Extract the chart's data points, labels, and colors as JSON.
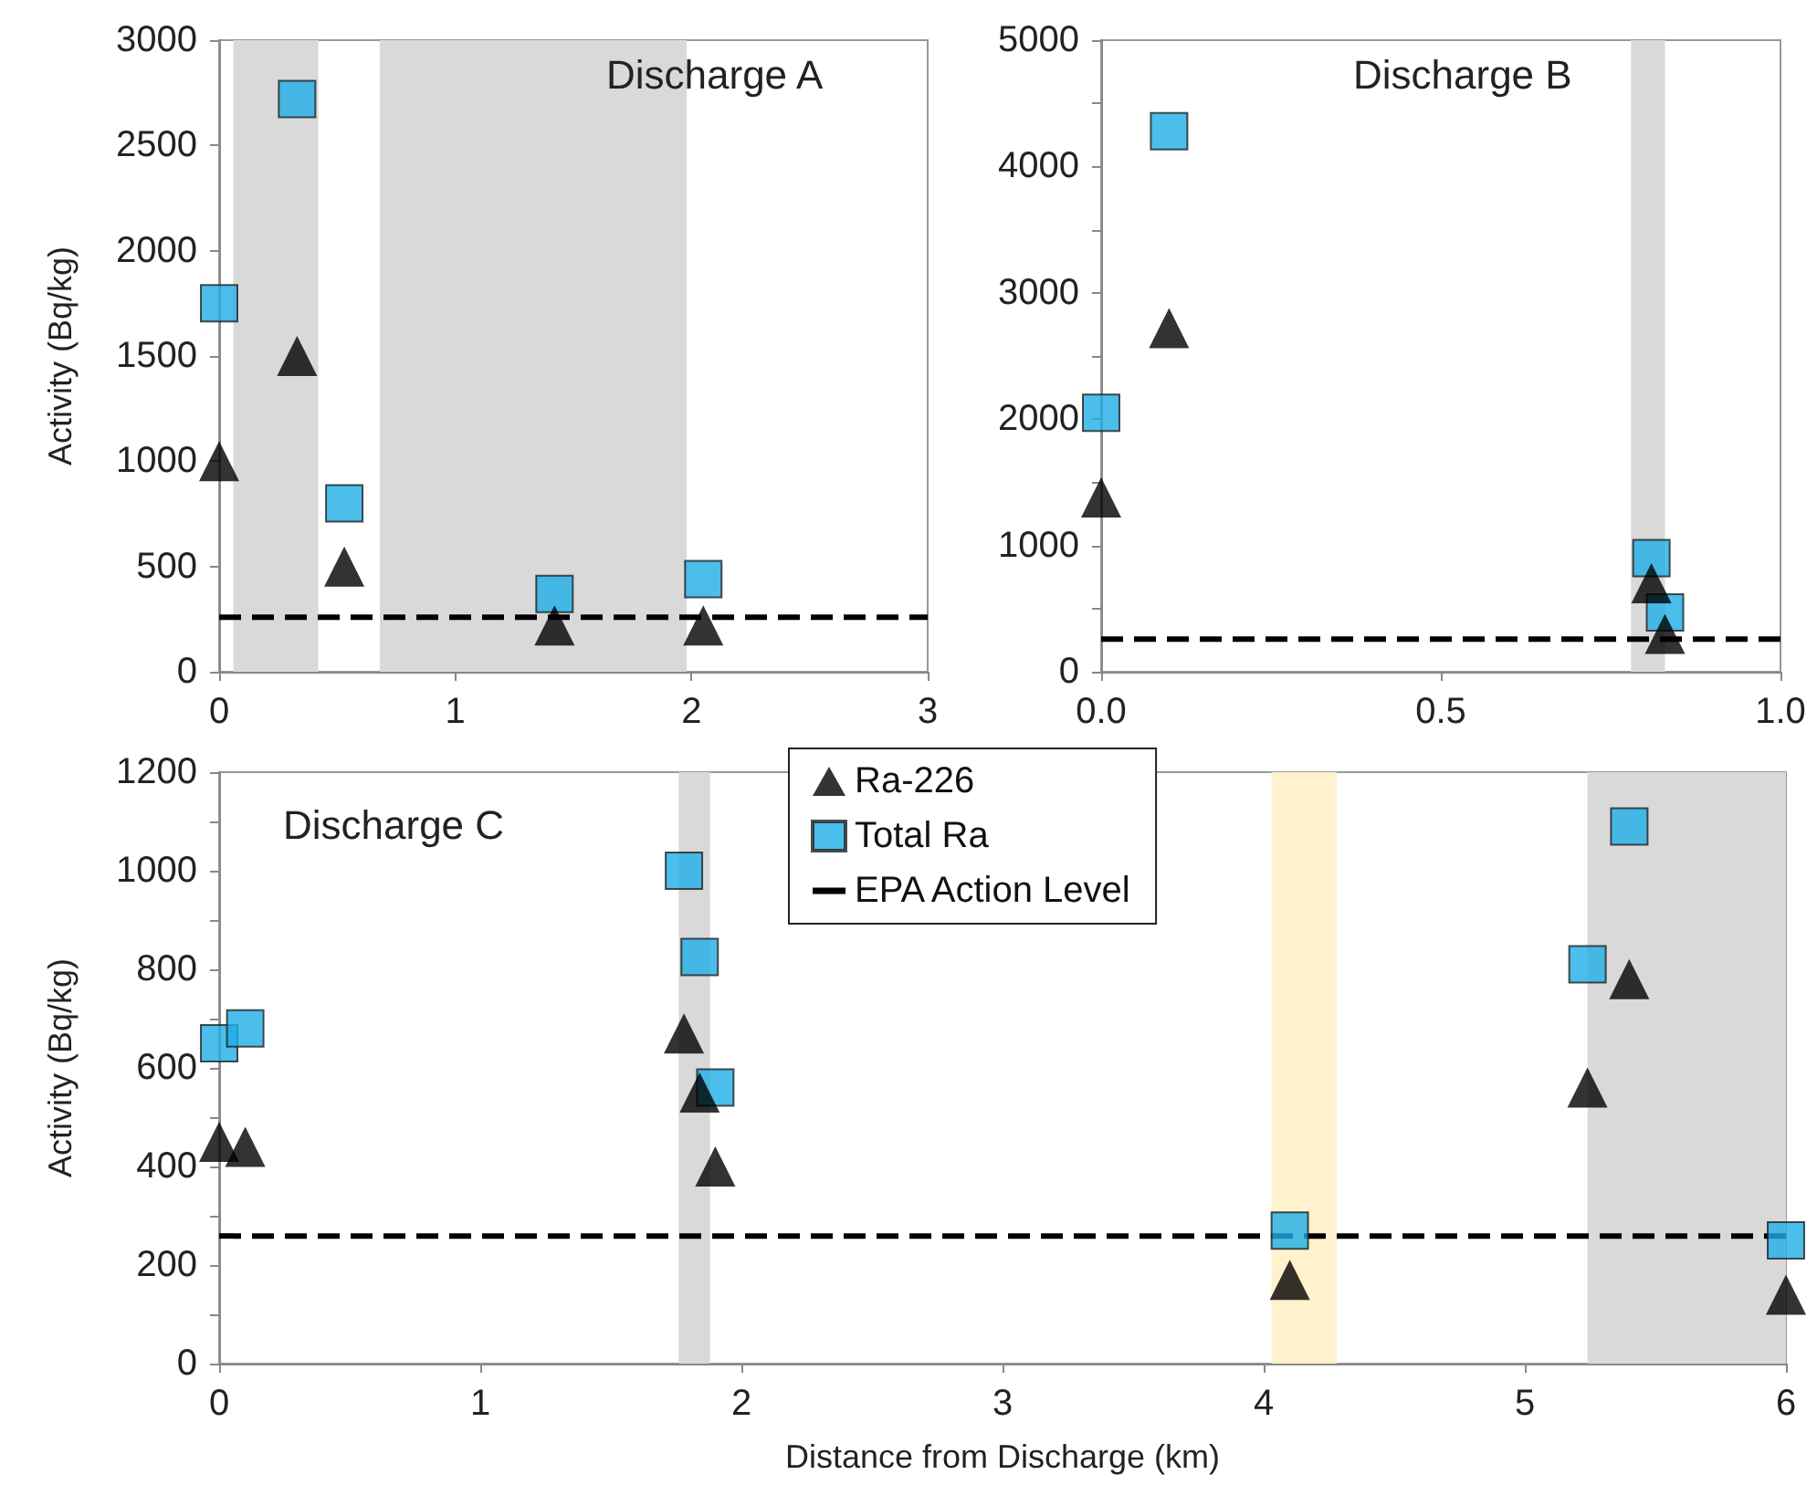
{
  "chart_data": [
    {
      "type": "scatter",
      "annotations": [
        "Discharge A"
      ],
      "ylabel": "Activity (Bq/kg)",
      "xlim": [
        0,
        3
      ],
      "xticks": [
        0,
        1,
        2,
        3
      ],
      "ylim": [
        0,
        3000
      ],
      "yticks": [
        0,
        500,
        1000,
        1500,
        2000,
        2500,
        3000
      ],
      "grid": false,
      "legend": false,
      "series": [
        {
          "color": "#000000",
          "marker": "triangle",
          "x": [
            0,
            0.33,
            0.53,
            1.42,
            2.05
          ],
          "values": [
            1000,
            1500,
            500,
            220,
            220
          ]
        },
        {
          "color": "#1eaee6",
          "marker": "square",
          "x": [
            0,
            0.33,
            0.53,
            1.42,
            2.05
          ],
          "values": [
            1750,
            2720,
            800,
            370,
            440
          ]
        }
      ],
      "ref_lines": [
        {
          "axis": "y",
          "value": 259,
          "color": "#000000",
          "line_style": "dashed"
        }
      ],
      "bands": [
        {
          "axis": "x",
          "from": 0.06,
          "to": 0.42,
          "color": "#d9d9d9"
        },
        {
          "axis": "x",
          "from": 0.68,
          "to": 1.98,
          "color": "#d9d9d9"
        }
      ]
    },
    {
      "type": "scatter",
      "annotations": [
        "Discharge B"
      ],
      "xlim": [
        0,
        1
      ],
      "xticks": [
        {
          "value": 0,
          "label": "0.0"
        },
        0.5,
        {
          "value": 1,
          "label": "1.0"
        }
      ],
      "ylim": [
        0,
        5000
      ],
      "yticks": [
        0,
        {
          "value": 500,
          "label": null
        },
        1000,
        {
          "value": 1500,
          "label": null
        },
        2000,
        {
          "value": 2500,
          "label": null
        },
        3000,
        {
          "value": 3500,
          "label": null
        },
        4000,
        {
          "value": 4500,
          "label": null
        },
        5000
      ],
      "grid": false,
      "legend": false,
      "series": [
        {
          "color": "#000000",
          "marker": "triangle",
          "x": [
            0,
            0.1,
            0.81,
            0.83
          ],
          "values": [
            1380,
            2720,
            700,
            300
          ]
        },
        {
          "color": "#1eaee6",
          "marker": "square",
          "x": [
            0,
            0.1,
            0.81,
            0.83
          ],
          "values": [
            2050,
            4280,
            900,
            470
          ]
        }
      ],
      "ref_lines": [
        {
          "axis": "y",
          "value": 259,
          "color": "#000000",
          "line_style": "dashed"
        }
      ],
      "bands": [
        {
          "axis": "x",
          "from": 0.78,
          "to": 0.83,
          "color": "#d9d9d9"
        }
      ]
    },
    {
      "type": "scatter",
      "annotations": [
        "Discharge C"
      ],
      "xlabel": "Distance from Discharge (km)",
      "ylabel": "Activity (Bq/kg)",
      "xlim": [
        0,
        6
      ],
      "xticks": [
        0,
        1,
        2,
        3,
        4,
        5,
        6
      ],
      "ylim": [
        0,
        1200
      ],
      "yticks": [
        0,
        {
          "value": 100,
          "label": null
        },
        200,
        {
          "value": 300,
          "label": null
        },
        400,
        {
          "value": 500,
          "label": null
        },
        600,
        {
          "value": 700,
          "label": null
        },
        800,
        {
          "value": 900,
          "label": null
        },
        1000,
        {
          "value": 1100,
          "label": null
        },
        1200
      ],
      "grid": false,
      "legend": "top",
      "series": [
        {
          "name": "Ra-226",
          "color": "#000000",
          "marker": "triangle",
          "x": [
            0,
            0.1,
            1.78,
            1.84,
            1.9,
            4.1,
            5.24,
            5.4,
            6.0
          ],
          "values": [
            450,
            440,
            670,
            550,
            400,
            170,
            560,
            780,
            140
          ]
        },
        {
          "name": "Total Ra",
          "color": "#1eaee6",
          "marker": "square",
          "x": [
            0,
            0.1,
            1.78,
            1.84,
            1.9,
            4.1,
            5.24,
            5.4,
            6.0
          ],
          "values": [
            650,
            680,
            1000,
            825,
            560,
            270,
            810,
            1090,
            250
          ]
        }
      ],
      "ref_lines": [
        {
          "axis": "y",
          "value": 259,
          "label": "EPA Action Level",
          "color": "#000000",
          "line_style": "dashed"
        }
      ],
      "bands": [
        {
          "axis": "x",
          "from": 1.76,
          "to": 1.88,
          "color": "#d9d9d9"
        },
        {
          "axis": "x",
          "from": 4.03,
          "to": 4.28,
          "color": "#fff2cc"
        },
        {
          "axis": "x",
          "from": 5.24,
          "to": 6.0,
          "color": "#d9d9d9"
        }
      ]
    }
  ]
}
